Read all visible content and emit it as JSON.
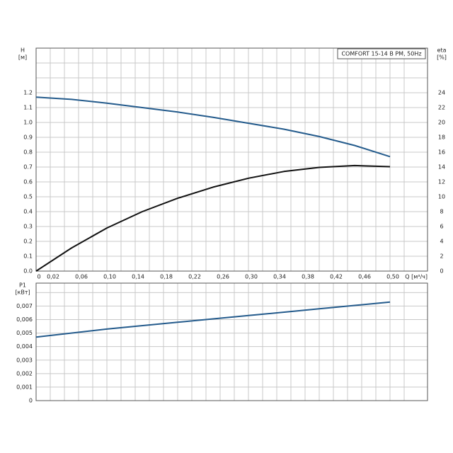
{
  "chart_data": [
    {
      "type": "line",
      "ylabel": "H",
      "yunit": "[м]",
      "y2label": "eta",
      "y2unit": "[%]",
      "xlabel": "Q [м³/ч]",
      "legend": "COMFORT  15-14 B PM, 50Hz",
      "x": [
        0,
        0.05,
        0.1,
        0.15,
        0.2,
        0.25,
        0.3,
        0.35,
        0.4,
        0.45,
        0.5
      ],
      "series": [
        {
          "color": "#245b8c",
          "values": [
            1.17,
            1.155,
            1.13,
            1.1,
            1.07,
            1.035,
            0.995,
            0.955,
            0.905,
            0.845,
            0.77
          ]
        },
        {
          "color": "#111111",
          "axis": "y2",
          "values": [
            0,
            3.1,
            5.8,
            8.0,
            9.8,
            11.3,
            12.5,
            13.4,
            13.95,
            14.2,
            14.05
          ]
        }
      ],
      "xlim": [
        0,
        0.553
      ],
      "xticks": [
        0,
        {
          "value": 0.02,
          "label": "0,02"
        },
        {
          "value": 0.04,
          "label": null
        },
        {
          "value": 0.06,
          "label": "0,06"
        },
        {
          "value": 0.08,
          "label": null
        },
        {
          "value": 0.1,
          "label": "0,10"
        },
        {
          "value": 0.12,
          "label": null
        },
        {
          "value": 0.14,
          "label": "0,14"
        },
        {
          "value": 0.16,
          "label": null
        },
        {
          "value": 0.18,
          "label": "0,18"
        },
        {
          "value": 0.2,
          "label": null
        },
        {
          "value": 0.22,
          "label": "0,22"
        },
        {
          "value": 0.24,
          "label": null
        },
        {
          "value": 0.26,
          "label": "0,26"
        },
        {
          "value": 0.28,
          "label": null
        },
        {
          "value": 0.3,
          "label": "0,30"
        },
        {
          "value": 0.32,
          "label": null
        },
        {
          "value": 0.34,
          "label": "0,34"
        },
        {
          "value": 0.36,
          "label": null
        },
        {
          "value": 0.38,
          "label": "0,38"
        },
        {
          "value": 0.4,
          "label": null
        },
        {
          "value": 0.42,
          "label": "0,42"
        },
        {
          "value": 0.44,
          "label": null
        },
        {
          "value": 0.46,
          "label": "0,46"
        },
        {
          "value": 0.48,
          "label": null
        },
        {
          "value": 0.5,
          "label": "0,50"
        },
        {
          "value": 0.52,
          "label": null
        }
      ],
      "ylim": [
        0,
        1.5
      ],
      "yticks": [
        {
          "value": 0,
          "label": "0.0"
        },
        0.1,
        0.2,
        0.3,
        0.4,
        0.5,
        0.6,
        0.7,
        0.8,
        0.9,
        {
          "value": 1,
          "label": "1.0"
        },
        1.1,
        1.2,
        {
          "value": 1.3,
          "label": null
        },
        {
          "value": 1.4,
          "label": null
        }
      ],
      "y2lim": [
        0,
        30
      ],
      "y2ticks": [
        0,
        2,
        4,
        6,
        8,
        10,
        12,
        14,
        16,
        18,
        20,
        22,
        24
      ],
      "grid": true
    },
    {
      "type": "line",
      "ylabel": "P1",
      "yunit": "[кВт]",
      "x": [
        0,
        0.1,
        0.2,
        0.3,
        0.4,
        0.5
      ],
      "series": [
        {
          "color": "#245b8c",
          "values": [
            0.0047,
            0.0053,
            0.0058,
            0.0063,
            0.0068,
            0.0073
          ]
        }
      ],
      "xlim": [
        0,
        0.553
      ],
      "xticks": [
        0,
        0.02,
        0.04,
        0.06,
        0.08,
        0.1,
        0.12,
        0.14,
        0.16,
        0.18,
        0.2,
        0.22,
        0.24,
        0.26,
        0.28,
        0.3,
        0.32,
        0.34,
        0.36,
        0.38,
        0.4,
        0.42,
        0.44,
        0.46,
        0.48,
        0.5,
        0.52
      ],
      "ylim": [
        0,
        0.0087
      ],
      "yticks": [
        0,
        {
          "value": 0.001,
          "label": "0,001"
        },
        {
          "value": 0.002,
          "label": "0,002"
        },
        {
          "value": 0.003,
          "label": "0,003"
        },
        {
          "value": 0.004,
          "label": "0,004"
        },
        {
          "value": 0.005,
          "label": "0,005"
        },
        {
          "value": 0.006,
          "label": "0,006"
        },
        {
          "value": 0.007,
          "label": "0,007"
        },
        {
          "value": 0.008,
          "label": null
        }
      ],
      "grid": true
    }
  ]
}
